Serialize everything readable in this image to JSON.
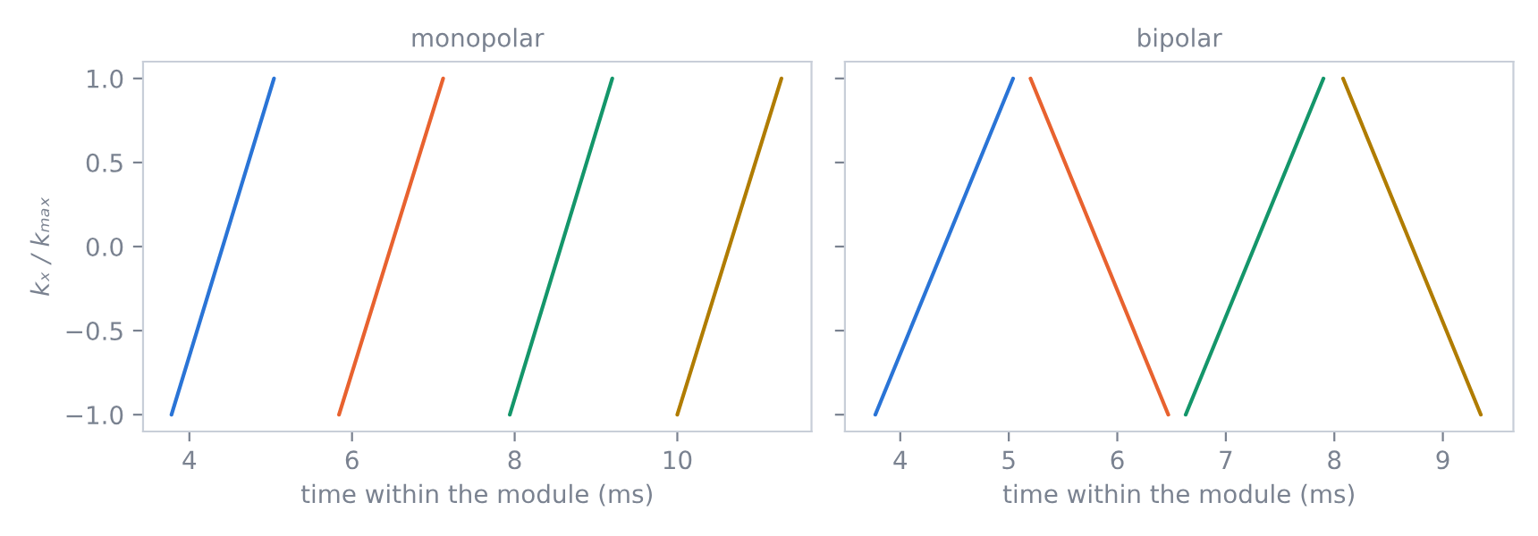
{
  "chart_data": [
    {
      "type": "line",
      "title": "monopolar",
      "xlabel": "time within the module (ms)",
      "ylabel": "kₓ / kₘₐₓ",
      "xlim": [
        3.43,
        11.65
      ],
      "xticks": [
        4,
        6,
        8,
        10
      ],
      "ylim": [
        -1.1,
        1.1
      ],
      "yticks": [
        {
          "value": -1,
          "label": "−1.0"
        },
        -0.5,
        {
          "value": 0,
          "label": "0.0"
        },
        0.5,
        {
          "value": 1,
          "label": "1.0"
        }
      ],
      "grid": false,
      "series": [
        {
          "color": "#2a74d6",
          "x": [
            3.78,
            5.04
          ],
          "values": [
            -1.0,
            1.0
          ]
        },
        {
          "color": "#e8622f",
          "x": [
            5.84,
            7.12
          ],
          "values": [
            -1.0,
            1.0
          ]
        },
        {
          "color": "#14966a",
          "x": [
            7.94,
            9.2
          ],
          "values": [
            -1.0,
            1.0
          ]
        },
        {
          "color": "#b07c00",
          "x": [
            10.0,
            11.28
          ],
          "values": [
            -1.0,
            1.0
          ]
        }
      ]
    },
    {
      "type": "line",
      "title": "bipolar",
      "xlabel": "time within the module (ms)",
      "xlim": [
        3.49,
        9.65
      ],
      "xticks": [
        4,
        5,
        6,
        7,
        8,
        9
      ],
      "ylim": [
        -1.1,
        1.1
      ],
      "yticks": [
        -1.0,
        -0.5,
        0.0,
        0.5,
        1.0
      ],
      "tick_labels": "x",
      "grid": false,
      "series": [
        {
          "color": "#2a74d6",
          "x": [
            3.77,
            5.04
          ],
          "values": [
            -1.0,
            1.0
          ]
        },
        {
          "color": "#e8622f",
          "x": [
            5.2,
            6.47
          ],
          "values": [
            1.0,
            -1.0
          ]
        },
        {
          "color": "#14966a",
          "x": [
            6.63,
            7.9
          ],
          "values": [
            -1.0,
            1.0
          ]
        },
        {
          "color": "#b07c00",
          "x": [
            8.08,
            9.35
          ],
          "values": [
            1.0,
            -1.0
          ]
        }
      ]
    }
  ]
}
